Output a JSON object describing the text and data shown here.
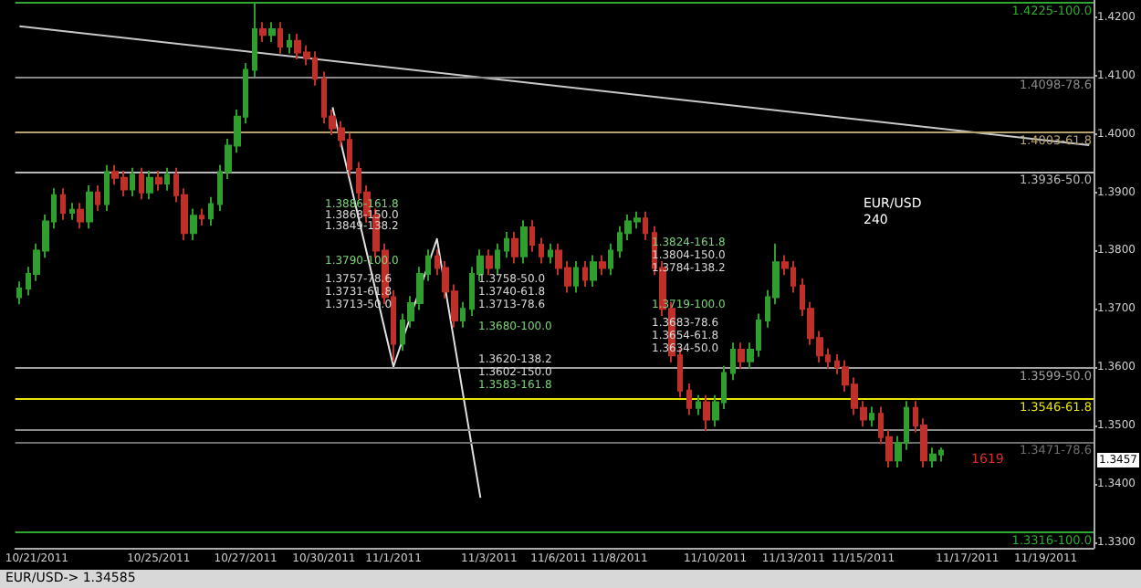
{
  "chart_data": {
    "type": "candlestick",
    "categories": [
      null,
      null,
      "10/21/2011",
      null,
      null,
      null,
      null,
      null,
      null,
      null,
      null,
      null,
      null,
      null,
      null,
      null,
      "10/25/2011",
      null,
      null,
      null,
      null,
      null,
      null,
      null,
      null,
      null,
      "10/27/2011",
      null,
      null,
      null,
      null,
      null,
      null,
      null,
      null,
      "10/30/2011",
      null,
      null,
      null,
      null,
      null,
      null,
      null,
      "11/1/2011",
      null,
      null,
      null,
      null,
      null,
      null,
      null,
      null,
      null,
      null,
      "11/3/2011",
      null,
      null,
      null,
      null,
      null,
      null,
      null,
      "11/6/2011",
      null,
      null,
      null,
      null,
      null,
      null,
      "11/8/2011",
      null,
      null,
      null,
      null,
      null,
      null,
      null,
      null,
      null,
      null,
      "11/10/2011",
      null,
      null,
      null,
      null,
      null,
      null,
      null,
      null,
      "11/13/2011",
      null,
      null,
      null,
      null,
      null,
      null,
      null,
      "11/15/2011",
      null,
      null,
      null,
      null,
      null,
      null,
      null,
      null,
      null,
      null,
      null,
      "11/17/2011",
      null,
      null,
      null,
      null,
      null,
      null,
      null,
      null,
      "11/19/2011",
      null,
      null,
      null,
      null,
      null
    ],
    "ohlc": [
      [
        1.372,
        1.3747,
        1.3708,
        1.3735
      ],
      [
        1.3735,
        1.3772,
        1.3723,
        1.376
      ],
      [
        1.376,
        1.3812,
        1.3748,
        1.38
      ],
      [
        1.38,
        1.3862,
        1.3788,
        1.385
      ],
      [
        1.385,
        1.3907,
        1.3838,
        1.3895
      ],
      [
        1.3895,
        1.3907,
        1.3853,
        1.3865
      ],
      [
        1.3865,
        1.3882,
        1.3853,
        1.387
      ],
      [
        1.387,
        1.3882,
        1.3838,
        1.385
      ],
      [
        1.385,
        1.3912,
        1.3838,
        1.39
      ],
      [
        1.39,
        1.3912,
        1.3868,
        1.388
      ],
      [
        1.388,
        1.3947,
        1.3868,
        1.3935
      ],
      [
        1.3935,
        1.3947,
        1.3913,
        1.3925
      ],
      [
        1.3925,
        1.3937,
        1.3893,
        1.3905
      ],
      [
        1.3905,
        1.3942,
        1.3893,
        1.393
      ],
      [
        1.393,
        1.3942,
        1.3888,
        1.39
      ],
      [
        1.39,
        1.3937,
        1.3888,
        1.3925
      ],
      [
        1.3925,
        1.3937,
        1.3903,
        1.3915
      ],
      [
        1.3915,
        1.3942,
        1.3903,
        1.393
      ],
      [
        1.393,
        1.3942,
        1.3883,
        1.3895
      ],
      [
        1.3895,
        1.3907,
        1.3818,
        1.383
      ],
      [
        1.383,
        1.3872,
        1.3818,
        1.386
      ],
      [
        1.386,
        1.3872,
        1.3843,
        1.3855
      ],
      [
        1.3855,
        1.3892,
        1.3843,
        1.388
      ],
      [
        1.388,
        1.3947,
        1.3868,
        1.3935
      ],
      [
        1.3935,
        1.3992,
        1.3923,
        1.398
      ],
      [
        1.398,
        1.4042,
        1.3968,
        1.403
      ],
      [
        1.403,
        1.4122,
        1.4018,
        1.411
      ],
      [
        1.411,
        1.4225,
        1.4098,
        1.418
      ],
      [
        1.418,
        1.4192,
        1.4158,
        1.417
      ],
      [
        1.417,
        1.4192,
        1.4158,
        1.418
      ],
      [
        1.418,
        1.4192,
        1.4138,
        1.415
      ],
      [
        1.415,
        1.4172,
        1.4138,
        1.416
      ],
      [
        1.416,
        1.4172,
        1.4128,
        1.414
      ],
      [
        1.414,
        1.4152,
        1.4118,
        1.413
      ],
      [
        1.413,
        1.4142,
        1.4083,
        1.4095
      ],
      [
        1.4095,
        1.4107,
        1.4018,
        1.403
      ],
      [
        1.403,
        1.4042,
        1.3998,
        1.401
      ],
      [
        1.401,
        1.4022,
        1.3978,
        1.399
      ],
      [
        1.399,
        1.4002,
        1.3928,
        1.394
      ],
      [
        1.394,
        1.3952,
        1.3888,
        1.39
      ],
      [
        1.39,
        1.3912,
        1.3848,
        1.386
      ],
      [
        1.386,
        1.3872,
        1.3788,
        1.38
      ],
      [
        1.38,
        1.3812,
        1.3708,
        1.372
      ],
      [
        1.372,
        1.3732,
        1.361,
        1.364
      ],
      [
        1.364,
        1.3692,
        1.3628,
        1.368
      ],
      [
        1.368,
        1.3722,
        1.3668,
        1.371
      ],
      [
        1.371,
        1.3772,
        1.3698,
        1.376
      ],
      [
        1.376,
        1.3802,
        1.3748,
        1.379
      ],
      [
        1.379,
        1.3802,
        1.3758,
        1.377
      ],
      [
        1.377,
        1.3782,
        1.3718,
        1.373
      ],
      [
        1.373,
        1.3742,
        1.3668,
        1.368
      ],
      [
        1.368,
        1.3712,
        1.3668,
        1.37
      ],
      [
        1.37,
        1.3772,
        1.3688,
        1.376
      ],
      [
        1.376,
        1.3802,
        1.3748,
        1.379
      ],
      [
        1.379,
        1.3802,
        1.3758,
        1.377
      ],
      [
        1.377,
        1.3812,
        1.3758,
        1.38
      ],
      [
        1.38,
        1.3832,
        1.3788,
        1.382
      ],
      [
        1.382,
        1.3832,
        1.3778,
        1.379
      ],
      [
        1.379,
        1.3852,
        1.3778,
        1.384
      ],
      [
        1.384,
        1.3852,
        1.3798,
        1.381
      ],
      [
        1.381,
        1.3822,
        1.3778,
        1.379
      ],
      [
        1.379,
        1.3812,
        1.3778,
        1.38
      ],
      [
        1.38,
        1.3812,
        1.3758,
        1.377
      ],
      [
        1.377,
        1.3782,
        1.3728,
        1.374
      ],
      [
        1.374,
        1.3782,
        1.3728,
        1.377
      ],
      [
        1.377,
        1.3782,
        1.3738,
        1.375
      ],
      [
        1.375,
        1.3792,
        1.3738,
        1.378
      ],
      [
        1.378,
        1.3792,
        1.3758,
        1.377
      ],
      [
        1.377,
        1.3812,
        1.3758,
        1.38
      ],
      [
        1.38,
        1.3842,
        1.3788,
        1.383
      ],
      [
        1.383,
        1.3862,
        1.3818,
        1.385
      ],
      [
        1.385,
        1.3867,
        1.3838,
        1.3855
      ],
      [
        1.3855,
        1.3867,
        1.3818,
        1.383
      ],
      [
        1.383,
        1.3842,
        1.3758,
        1.377
      ],
      [
        1.377,
        1.3782,
        1.3688,
        1.37
      ],
      [
        1.37,
        1.3712,
        1.3608,
        1.362
      ],
      [
        1.362,
        1.3632,
        1.3548,
        1.356
      ],
      [
        1.356,
        1.3572,
        1.3518,
        1.353
      ],
      [
        1.353,
        1.3552,
        1.3518,
        1.354
      ],
      [
        1.354,
        1.3552,
        1.349,
        1.351
      ],
      [
        1.351,
        1.3552,
        1.3498,
        1.354
      ],
      [
        1.354,
        1.3602,
        1.3528,
        1.359
      ],
      [
        1.359,
        1.3642,
        1.3578,
        1.363
      ],
      [
        1.363,
        1.3642,
        1.3598,
        1.361
      ],
      [
        1.361,
        1.3642,
        1.3598,
        1.363
      ],
      [
        1.363,
        1.3692,
        1.3618,
        1.368
      ],
      [
        1.368,
        1.3732,
        1.3668,
        1.372
      ],
      [
        1.372,
        1.3812,
        1.3708,
        1.378
      ],
      [
        1.378,
        1.3792,
        1.3758,
        1.377
      ],
      [
        1.377,
        1.3782,
        1.3728,
        1.374
      ],
      [
        1.374,
        1.3752,
        1.3688,
        1.37
      ],
      [
        1.37,
        1.3712,
        1.3638,
        1.365
      ],
      [
        1.365,
        1.3662,
        1.3608,
        1.362
      ],
      [
        1.362,
        1.3632,
        1.3598,
        1.361
      ],
      [
        1.361,
        1.3622,
        1.3588,
        1.36
      ],
      [
        1.36,
        1.3612,
        1.3558,
        1.357
      ],
      [
        1.357,
        1.3582,
        1.3518,
        1.353
      ],
      [
        1.353,
        1.3542,
        1.3498,
        1.351
      ],
      [
        1.351,
        1.3532,
        1.3498,
        1.352
      ],
      [
        1.352,
        1.3532,
        1.3468,
        1.348
      ],
      [
        1.348,
        1.3492,
        1.3428,
        1.344
      ],
      [
        1.344,
        1.3482,
        1.3428,
        1.347
      ],
      [
        1.347,
        1.3542,
        1.3458,
        1.353
      ],
      [
        1.353,
        1.3542,
        1.3488,
        1.35
      ],
      [
        1.35,
        1.3512,
        1.3428,
        1.344
      ],
      [
        1.344,
        1.3462,
        1.3428,
        1.345
      ],
      [
        1.345,
        1.3462,
        1.3438,
        1.3457
      ],
      null,
      null,
      null,
      null,
      null,
      null,
      null,
      null,
      null,
      null,
      null,
      null,
      null,
      null,
      null,
      null,
      null
    ],
    "colors": [
      "#2f9e2f",
      "#2f9e2f",
      "#2f9e2f",
      "#2f9e2f",
      "#2f9e2f",
      "#c0302a",
      "#2f9e2f",
      "#c0302a",
      "#2f9e2f",
      "#c0302a",
      "#2f9e2f",
      "#c0302a",
      "#c0302a",
      "#2f9e2f",
      "#c0302a",
      "#2f9e2f",
      "#c0302a",
      "#2f9e2f",
      "#c0302a",
      "#c0302a",
      "#2f9e2f",
      "#c0302a",
      "#2f9e2f",
      "#2f9e2f",
      "#2f9e2f",
      "#2f9e2f",
      "#2f9e2f",
      "#2f9e2f",
      "#c0302a",
      "#2f9e2f",
      "#c0302a",
      "#2f9e2f",
      "#c0302a",
      "#c0302a",
      "#c0302a",
      "#c0302a",
      "#c0302a",
      "#c0302a",
      "#c0302a",
      "#c0302a",
      "#c0302a",
      "#c0302a",
      "#c0302a",
      "#c0302a",
      "#2f9e2f",
      "#2f9e2f",
      "#2f9e2f",
      "#2f9e2f",
      "#c0302a",
      "#c0302a",
      "#c0302a",
      "#2f9e2f",
      "#2f9e2f",
      "#2f9e2f",
      "#c0302a",
      "#2f9e2f",
      "#2f9e2f",
      "#c0302a",
      "#2f9e2f",
      "#c0302a",
      "#c0302a",
      "#2f9e2f",
      "#c0302a",
      "#c0302a",
      "#2f9e2f",
      "#c0302a",
      "#2f9e2f",
      "#c0302a",
      "#2f9e2f",
      "#2f9e2f",
      "#2f9e2f",
      "#2f9e2f",
      "#c0302a",
      "#c0302a",
      "#c0302a",
      "#c0302a",
      "#c0302a",
      "#c0302a",
      "#2f9e2f",
      "#c0302a",
      "#2f9e2f",
      "#2f9e2f",
      "#2f9e2f",
      "#c0302a",
      "#2f9e2f",
      "#2f9e2f",
      "#2f9e2f",
      "#2f9e2f",
      "#c0302a",
      "#c0302a",
      "#c0302a",
      "#c0302a",
      "#c0302a",
      "#c0302a",
      "#c0302a",
      "#c0302a",
      "#c0302a",
      "#c0302a",
      "#2f9e2f",
      "#c0302a",
      "#c0302a",
      "#2f9e2f",
      "#2f9e2f",
      "#c0302a",
      "#c0302a",
      "#2f9e2f",
      "#2f9e2f",
      null,
      null,
      null,
      null,
      null,
      null,
      null,
      null,
      null,
      null,
      null,
      null,
      null,
      null,
      null,
      null,
      null
    ],
    "series": [
      {
        "type": "line",
        "color": "#c8c8c8",
        "values": [
          1.4185,
          null,
          null,
          null,
          null,
          null,
          null,
          null,
          null,
          null,
          null,
          null,
          null,
          null,
          null,
          null,
          null,
          null,
          null,
          null,
          null,
          null,
          null,
          null,
          null,
          null,
          null,
          null,
          null,
          null,
          null,
          null,
          null,
          null,
          null,
          null,
          null,
          null,
          null,
          null,
          null,
          null,
          null,
          null,
          null,
          null,
          null,
          null,
          null,
          null,
          null,
          null,
          null,
          null,
          null,
          null,
          null,
          null,
          null,
          null,
          null,
          null,
          null,
          null,
          null,
          null,
          null,
          null,
          null,
          null,
          null,
          null,
          null,
          null,
          null,
          null,
          null,
          null,
          null,
          null,
          null,
          null,
          null,
          null,
          null,
          null,
          null,
          null,
          null,
          null,
          null,
          null,
          null,
          null,
          null,
          null,
          null,
          null,
          null,
          null,
          null,
          null,
          null,
          null,
          null,
          null,
          null,
          null,
          null,
          null,
          null,
          null,
          null,
          null,
          null,
          null,
          null,
          null,
          null,
          null,
          null,
          null,
          null,
          1.3981
        ]
      },
      {
        "type": "line",
        "color": "#e0e0e0",
        "values": [
          null,
          null,
          null,
          null,
          null,
          null,
          null,
          null,
          null,
          null,
          null,
          null,
          null,
          null,
          null,
          null,
          null,
          null,
          null,
          null,
          null,
          null,
          null,
          null,
          null,
          null,
          null,
          null,
          null,
          null,
          null,
          null,
          null,
          null,
          null,
          null,
          1.4046,
          null,
          null,
          null,
          null,
          null,
          null,
          1.3601,
          null,
          null,
          null,
          null,
          1.382,
          null,
          null,
          null,
          null,
          1.3376,
          null,
          null,
          null,
          null,
          null,
          null,
          null,
          null,
          null,
          null,
          null,
          null,
          null,
          null,
          null,
          null,
          null,
          null,
          null,
          null,
          null,
          null,
          null,
          null,
          null,
          null,
          null,
          null,
          null,
          null,
          null,
          null,
          null,
          null,
          null,
          null,
          null,
          null,
          null,
          null,
          null,
          null,
          null,
          null,
          null,
          null,
          null,
          null,
          null,
          null,
          null,
          null,
          null,
          null,
          null,
          null,
          null,
          null,
          null,
          null,
          null,
          null,
          null,
          null,
          null,
          null,
          null,
          null,
          null,
          null
        ]
      }
    ],
    "ylim": [
      1.329,
      1.423
    ],
    "yticks": [
      {
        "value": 1.33,
        "label": "1.3300"
      },
      {
        "value": 1.34,
        "label": "1.3400"
      },
      {
        "value": 1.35,
        "label": "1.3500"
      },
      {
        "value": 1.36,
        "label": "1.3600"
      },
      {
        "value": 1.37,
        "label": "1.3700"
      },
      {
        "value": 1.38,
        "label": "1.3800"
      },
      {
        "value": 1.39,
        "label": "1.3900"
      },
      {
        "value": 1.4,
        "label": "1.4000"
      },
      {
        "value": 1.41,
        "label": "1.4100"
      },
      {
        "value": 1.42,
        "label": "1.4200"
      }
    ],
    "ref_lines": [
      {
        "axis": "y",
        "value": 1.4225,
        "label": "1.4225-100.0",
        "color": "#2fa82f"
      },
      {
        "axis": "y",
        "value": 1.4098,
        "label": "1.4098-78.6",
        "color": "#8a8a8a"
      },
      {
        "axis": "y",
        "value": 1.4003,
        "label": "1.4003-61.8",
        "color": "#b5a26a"
      },
      {
        "axis": "y",
        "value": 1.3936,
        "label": "1.3936-50.0",
        "color": "#b8b8b8"
      },
      {
        "axis": "y",
        "value": 1.3599,
        "label": "1.3599-50.0",
        "color": "#a0a0a0"
      },
      {
        "axis": "y",
        "value": 1.3546,
        "label": "1.3546-61.8",
        "color": "#e5e500"
      },
      {
        "axis": "y",
        "value": 1.3493,
        "label": null,
        "color": "#8a8a8a"
      },
      {
        "axis": "y",
        "value": 1.3471,
        "label": "1.3471-78.6",
        "color": "#6e6e6e"
      },
      {
        "axis": "y",
        "value": 1.3316,
        "label": "1.3316-100.0",
        "color": "#2fa82f"
      }
    ],
    "annotations": [
      "1.3886-161.8",
      "1.3868-150.0",
      "1.3849-138.2",
      "1.3790-100.0",
      "1.3757-78.6",
      "1.3731-61.8",
      "1.3713-50.0",
      "1.3758-50.0",
      "1.3740-61.8",
      "1.3713-78.6",
      "1.3680-100.0",
      "1.3620-138.2",
      "1.3602-150.0",
      "1.3583-161.8",
      "1.3824-161.8",
      "1.3804-150.0",
      "1.3784-138.2",
      "1.3719-100.0",
      "1.3683-78.6",
      "1.3654-61.8",
      "1.3634-50.0",
      "EUR/USD",
      "240",
      "EUR/USD-> 1.34585",
      "1619",
      "1.3457"
    ],
    "grid": false
  }
}
